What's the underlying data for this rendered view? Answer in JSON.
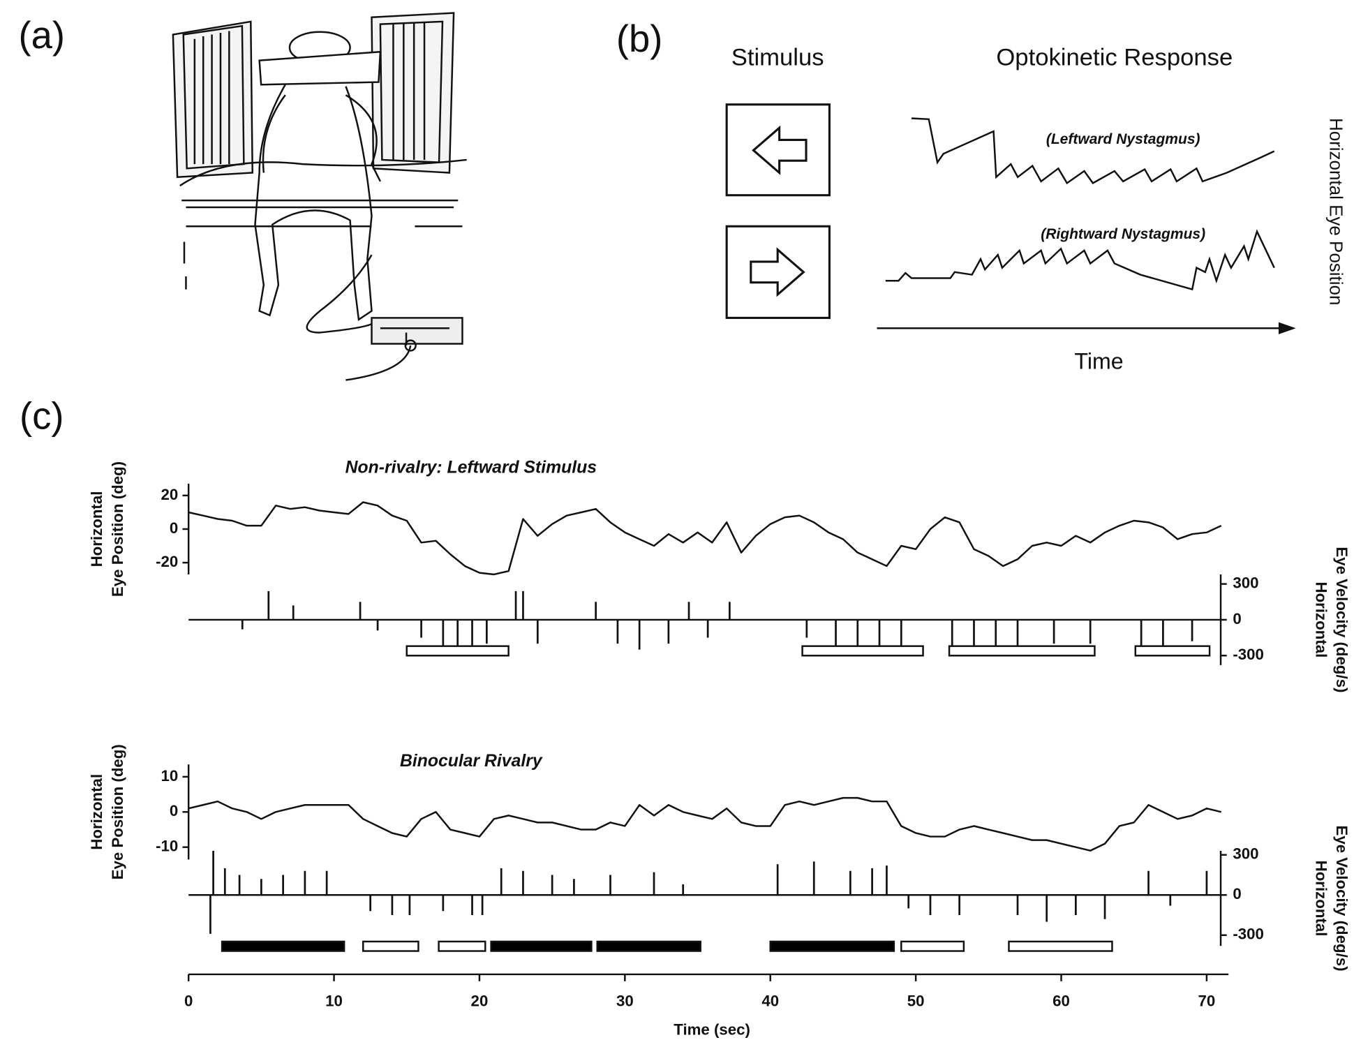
{
  "panel_a": {
    "label": "(a)"
  },
  "panel_b": {
    "label": "(b)",
    "stimulus_heading": "Stimulus",
    "response_heading": "Optokinetic Response",
    "leftward": "(Leftward Nystagmus)",
    "rightward": "(Rightward Nystagmus)",
    "x_axis": "Time",
    "y_axis": "Horizontal Eye Position"
  },
  "panel_c": {
    "label": "(c)"
  },
  "chart_data": [
    {
      "type": "line",
      "title": "Non-rivalry: Leftward Stimulus",
      "ylabel": [
        "Horizontal",
        "Eye Position (deg)"
      ],
      "y2label": [
        "Horizontal",
        "Eye Velocity (deg/s)"
      ],
      "xlim": [
        0,
        71.5
      ],
      "ylim": [
        -27,
        27
      ],
      "yticks": [
        -20,
        0,
        20
      ],
      "y2lim": [
        -380,
        380
      ],
      "y2ticks": [
        -300,
        0,
        300
      ],
      "x": [
        0,
        1,
        2,
        3,
        4,
        5,
        6,
        7,
        8,
        9,
        10,
        11,
        12,
        13,
        14,
        15,
        16,
        17,
        18,
        19,
        20,
        21,
        22,
        23,
        24,
        25,
        26,
        27,
        28,
        29,
        30,
        31,
        32,
        33,
        34,
        35,
        36,
        37,
        38,
        39,
        40,
        41,
        42,
        43,
        44,
        45,
        46,
        47,
        48,
        49,
        50,
        51,
        52,
        53,
        54,
        55,
        56,
        57,
        58,
        59,
        60,
        61,
        62,
        63,
        64,
        65,
        66,
        67,
        68,
        69,
        70,
        71
      ],
      "series": [
        {
          "color": "#111111",
          "values": [
            10,
            8,
            6,
            5,
            2,
            2,
            14,
            12,
            13,
            11,
            10,
            9,
            16,
            14,
            8,
            5,
            -8,
            -7,
            -15,
            -22,
            -26,
            -27,
            -25,
            6,
            -4,
            3,
            8,
            10,
            12,
            4,
            -2,
            -6,
            -10,
            -3,
            -8,
            -2,
            -8,
            4,
            -14,
            -4,
            3,
            7,
            8,
            4,
            -2,
            -6,
            -14,
            -18,
            -22,
            -10,
            -12,
            0,
            7,
            4,
            -12,
            -16,
            -22,
            -18,
            -10,
            -8,
            -10,
            -4,
            -8,
            -2,
            2,
            5,
            4,
            1,
            -6,
            -3,
            -2,
            2
          ]
        },
        {
          "color": "#111111",
          "axis": "y2",
          "x": [
            3.7,
            5.5,
            7.2,
            11.8,
            13,
            16,
            17.5,
            18.5,
            19.5,
            20.5,
            22.5,
            23,
            24,
            28,
            29.5,
            31,
            33,
            34.4,
            35.7,
            37.2,
            42.5,
            44.5,
            46,
            47.5,
            49,
            52.5,
            54,
            55.5,
            57,
            59.5,
            62,
            65.5,
            67,
            69
          ],
          "values": [
            -80,
            240,
            120,
            150,
            -90,
            -150,
            -280,
            -280,
            -280,
            -200,
            240,
            240,
            -200,
            150,
            -200,
            -250,
            -200,
            150,
            -150,
            150,
            -150,
            -250,
            -280,
            -280,
            -280,
            -280,
            -280,
            -250,
            -250,
            -200,
            -200,
            -250,
            -250,
            -180
          ]
        }
      ],
      "intervals": [
        {
          "start": 15,
          "end": 22,
          "fill": "#ffffff"
        },
        {
          "start": 42.2,
          "end": 50.5,
          "fill": "#ffffff"
        },
        {
          "start": 52.3,
          "end": 62.3,
          "fill": "#ffffff"
        },
        {
          "start": 65.1,
          "end": 70.2,
          "fill": "#ffffff"
        }
      ]
    },
    {
      "type": "line",
      "title": "Binocular Rivalry",
      "ylabel": [
        "Horizontal",
        "Eye Position (deg)"
      ],
      "y2label": [
        "Horizontal",
        "Eye Velocity (deg/s)"
      ],
      "xlabel": "Time (sec)",
      "xlim": [
        0,
        71.5
      ],
      "xticks": [
        0,
        10,
        20,
        30,
        40,
        50,
        60,
        70
      ],
      "ylim": [
        -13.5,
        13.5
      ],
      "yticks": [
        -10,
        0,
        10
      ],
      "y2lim": [
        -380,
        330
      ],
      "y2ticks": [
        -300,
        0,
        300
      ],
      "x": [
        0,
        1,
        2,
        3,
        4,
        5,
        6,
        7,
        8,
        9,
        10,
        11,
        12,
        13,
        14,
        15,
        16,
        17,
        18,
        19,
        20,
        21,
        22,
        23,
        24,
        25,
        26,
        27,
        28,
        29,
        30,
        31,
        32,
        33,
        34,
        35,
        36,
        37,
        38,
        39,
        40,
        41,
        42,
        43,
        44,
        45,
        46,
        47,
        48,
        49,
        50,
        51,
        52,
        53,
        54,
        55,
        56,
        57,
        58,
        59,
        60,
        61,
        62,
        63,
        64,
        65,
        66,
        67,
        68,
        69,
        70,
        71
      ],
      "series": [
        {
          "color": "#111111",
          "values": [
            1,
            2,
            3,
            1,
            0,
            -2,
            0,
            1,
            2,
            2,
            2,
            2,
            -2,
            -4,
            -6,
            -7,
            -2,
            0,
            -5,
            -6,
            -7,
            -2,
            -1,
            -2,
            -3,
            -3,
            -4,
            -5,
            -5,
            -3,
            -4,
            2,
            -1,
            2,
            0,
            -1,
            -2,
            1,
            -3,
            -4,
            -4,
            2,
            3,
            2,
            3,
            4,
            4,
            3,
            3,
            -4,
            -6,
            -7,
            -7,
            -5,
            -4,
            -5,
            -6,
            -7,
            -8,
            -8,
            -9,
            -10,
            -11,
            -9,
            -4,
            -3,
            2,
            0,
            -2,
            -1,
            1,
            0
          ]
        },
        {
          "color": "#111111",
          "axis": "y2",
          "x": [
            1.5,
            1.7,
            2.5,
            3.5,
            5,
            6.5,
            8,
            9.5,
            12.5,
            14,
            15.2,
            17.5,
            19.5,
            20.2,
            21.5,
            23,
            25,
            26.5,
            29,
            32,
            34,
            40.5,
            43,
            45.5,
            47,
            48,
            49.5,
            51,
            53,
            57,
            59,
            61,
            63,
            66,
            67.5,
            70
          ],
          "values": [
            -290,
            330,
            200,
            150,
            120,
            150,
            180,
            180,
            -120,
            -150,
            -150,
            -120,
            -150,
            -150,
            200,
            180,
            150,
            120,
            150,
            170,
            80,
            230,
            250,
            180,
            200,
            220,
            -100,
            -150,
            -150,
            -150,
            -200,
            -150,
            -180,
            180,
            -80,
            180
          ]
        }
      ],
      "intervals": [
        {
          "start": 2.3,
          "end": 10.7,
          "fill": "#000000"
        },
        {
          "start": 12,
          "end": 15.8,
          "fill": "#ffffff"
        },
        {
          "start": 17.2,
          "end": 20.4,
          "fill": "#ffffff"
        },
        {
          "start": 20.8,
          "end": 27.7,
          "fill": "#000000"
        },
        {
          "start": 28.1,
          "end": 35.2,
          "fill": "#000000"
        },
        {
          "start": 40,
          "end": 48.5,
          "fill": "#000000"
        },
        {
          "start": 49,
          "end": 53.3,
          "fill": "#ffffff"
        },
        {
          "start": 56.4,
          "end": 63.5,
          "fill": "#ffffff"
        }
      ]
    }
  ]
}
